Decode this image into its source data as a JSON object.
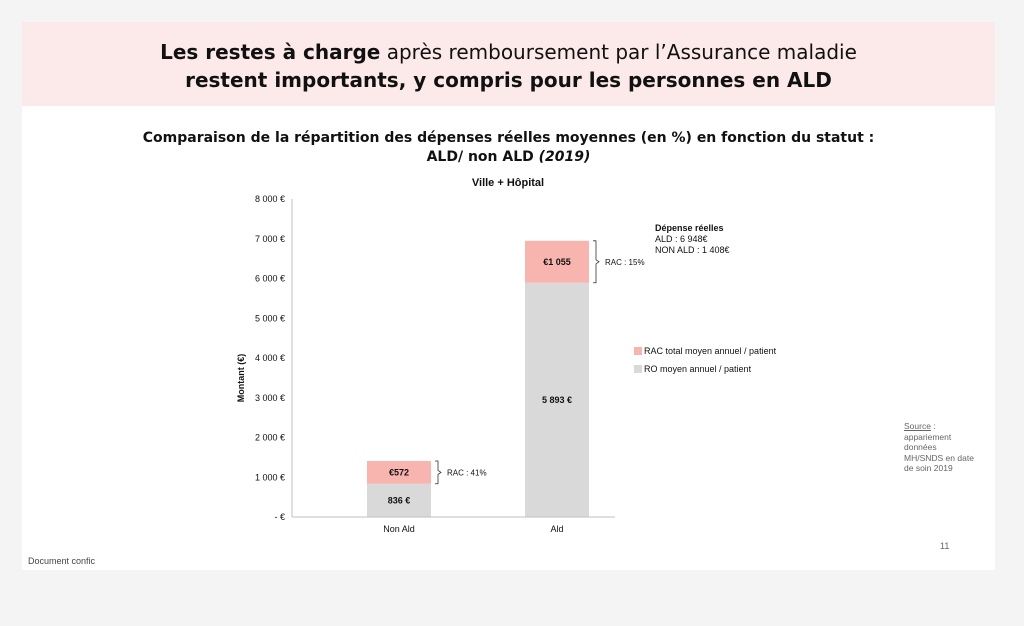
{
  "header": {
    "line1_bold": "Les restes à charge",
    "line1_rest": " après remboursement par l’Assurance maladie",
    "line2": "restent importants, y compris pour les personnes en ALD"
  },
  "subtitle": {
    "line1": "Comparaison de la répartition des dépenses réelles moyennes (en %) en fonction du statut :",
    "line2": "ALD/ non ALD",
    "year": "(2019)"
  },
  "chart_data": {
    "type": "bar",
    "stacked": true,
    "title": "Ville + Hôpital",
    "ylabel": "Montant (€)",
    "ylim": [
      0,
      8000
    ],
    "yticks": [
      {
        "value": 0,
        "label": "-   €"
      },
      {
        "value": 1000,
        "label": "1 000 €"
      },
      {
        "value": 2000,
        "label": "2 000 €"
      },
      {
        "value": 3000,
        "label": "3 000 €"
      },
      {
        "value": 4000,
        "label": "4 000 €"
      },
      {
        "value": 5000,
        "label": "5 000 €"
      },
      {
        "value": 6000,
        "label": "6 000 €"
      },
      {
        "value": 7000,
        "label": "7 000 €"
      },
      {
        "value": 8000,
        "label": "8 000 €"
      }
    ],
    "categories": [
      "Non Ald",
      "Ald"
    ],
    "series": [
      {
        "name": "RO moyen annuel / patient",
        "color": "#d9d9d9",
        "values": [
          836,
          5893
        ],
        "labels": [
          "836 €",
          "5 893 €"
        ]
      },
      {
        "name": "RAC total moyen annuel / patient",
        "color": "#f8b4ae",
        "values": [
          572,
          1055
        ],
        "labels": [
          "€572",
          "€1 055"
        ]
      }
    ],
    "annotations": [
      "RAC : 41%",
      "RAC : 15%"
    ],
    "legend_position": "right",
    "note": {
      "title": "Dépense réelles",
      "lines": [
        "ALD : 6 948€",
        "NON ALD : 1 408€"
      ]
    }
  },
  "source": {
    "label": "Source",
    "text": " : appariement données MH/SNDS en date de soin 2019"
  },
  "footer": {
    "left": "Document confic",
    "page": "11"
  }
}
